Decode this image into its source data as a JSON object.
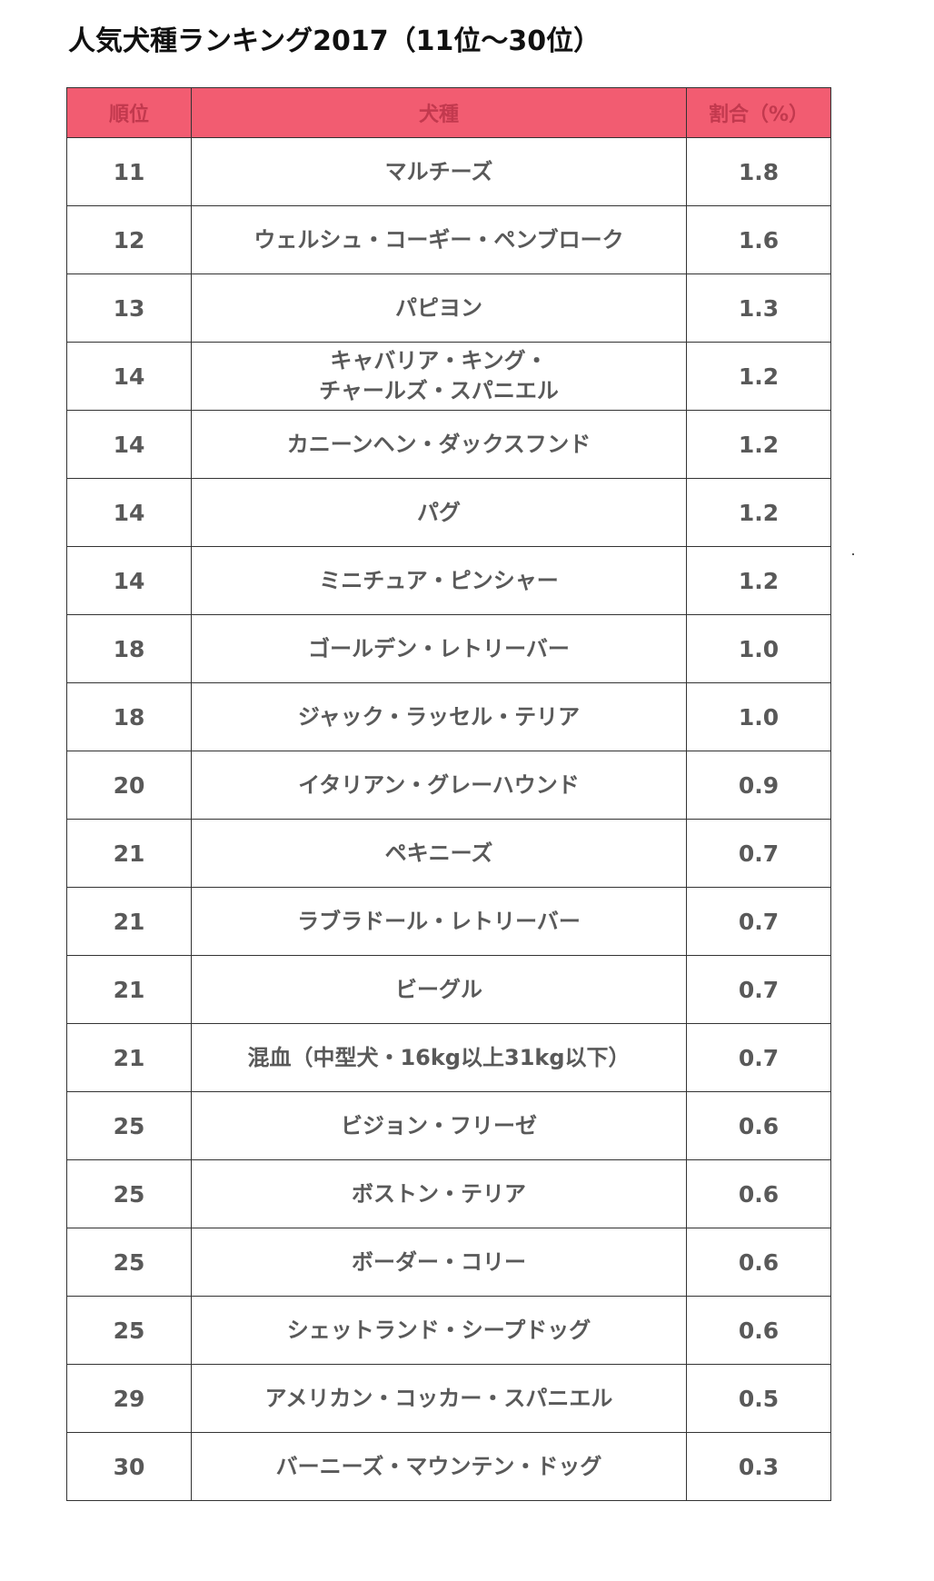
{
  "title": "人気犬種ランキング2017（11位～30位）",
  "table": {
    "headers": {
      "rank": "順位",
      "breed": "犬種",
      "ratio": "割合（%）"
    },
    "rows": [
      {
        "rank": "11",
        "breed": "マルチーズ",
        "ratio": "1.8"
      },
      {
        "rank": "12",
        "breed": "ウェルシュ・コーギー・ペンブローク",
        "ratio": "1.6"
      },
      {
        "rank": "13",
        "breed": "パピヨン",
        "ratio": "1.3"
      },
      {
        "rank": "14",
        "breed": "キャバリア・キング・\nチャールズ・スパニエル",
        "ratio": "1.2"
      },
      {
        "rank": "14",
        "breed": "カニーンヘン・ダックスフンド",
        "ratio": "1.2"
      },
      {
        "rank": "14",
        "breed": "パグ",
        "ratio": "1.2"
      },
      {
        "rank": "14",
        "breed": "ミニチュア・ピンシャー",
        "ratio": "1.2"
      },
      {
        "rank": "18",
        "breed": "ゴールデン・レトリーバー",
        "ratio": "1.0"
      },
      {
        "rank": "18",
        "breed": "ジャック・ラッセル・テリア",
        "ratio": "1.0"
      },
      {
        "rank": "20",
        "breed": "イタリアン・グレーハウンド",
        "ratio": "0.9"
      },
      {
        "rank": "21",
        "breed": "ペキニーズ",
        "ratio": "0.7"
      },
      {
        "rank": "21",
        "breed": "ラブラドール・レトリーバー",
        "ratio": "0.7"
      },
      {
        "rank": "21",
        "breed": "ビーグル",
        "ratio": "0.7"
      },
      {
        "rank": "21",
        "breed": "混血（中型犬・16kg以上31kg以下）",
        "ratio": "0.7"
      },
      {
        "rank": "25",
        "breed": "ビジョン・フリーゼ",
        "ratio": "0.6"
      },
      {
        "rank": "25",
        "breed": "ボストン・テリア",
        "ratio": "0.6"
      },
      {
        "rank": "25",
        "breed": "ボーダー・コリー",
        "ratio": "0.6"
      },
      {
        "rank": "25",
        "breed": "シェットランド・シープドッグ",
        "ratio": "0.6"
      },
      {
        "rank": "29",
        "breed": "アメリカン・コッカー・スパニエル",
        "ratio": "0.5"
      },
      {
        "rank": "30",
        "breed": "バーニーズ・マウンテン・ドッグ",
        "ratio": "0.3"
      }
    ]
  },
  "colors": {
    "header_bg": "#f25c71",
    "header_text": "#c2394e",
    "cell_text": "#595959",
    "border": "#333333",
    "title_text": "#111111"
  }
}
